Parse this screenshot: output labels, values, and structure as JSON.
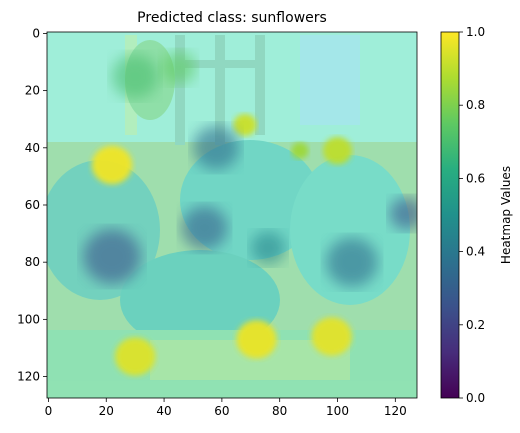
{
  "chart_data": {
    "type": "heatmap",
    "title": "Predicted class: sunflowers",
    "x_ticks": [
      0,
      20,
      40,
      60,
      80,
      100,
      120
    ],
    "y_ticks": [
      0,
      20,
      40,
      60,
      80,
      100,
      120
    ],
    "xlim": [
      -0.5,
      127.5
    ],
    "ylim": [
      127.5,
      -0.5
    ],
    "colorbar": {
      "label": "Heatmap Values",
      "range": [
        0.0,
        1.0
      ],
      "ticks": [
        "0.0",
        "0.2",
        "0.4",
        "0.6",
        "0.8",
        "1.0"
      ],
      "colormap": "viridis"
    },
    "overlay_blobs": [
      {
        "cx": 22,
        "cy": 46,
        "r": 7,
        "value": 0.98
      },
      {
        "cx": 68,
        "cy": 32,
        "r": 4,
        "value": 0.92
      },
      {
        "cx": 100,
        "cy": 41,
        "r": 5,
        "value": 0.9
      },
      {
        "cx": 87,
        "cy": 41,
        "r": 3,
        "value": 0.85
      },
      {
        "cx": 72,
        "cy": 107,
        "r": 7,
        "value": 0.97
      },
      {
        "cx": 98,
        "cy": 106,
        "r": 7,
        "value": 0.96
      },
      {
        "cx": 30,
        "cy": 113,
        "r": 7,
        "value": 0.95
      },
      {
        "cx": 22,
        "cy": 78,
        "r": 10,
        "value": 0.25
      },
      {
        "cx": 54,
        "cy": 68,
        "r": 8,
        "value": 0.3
      },
      {
        "cx": 58,
        "cy": 40,
        "r": 8,
        "value": 0.35
      },
      {
        "cx": 105,
        "cy": 80,
        "r": 9,
        "value": 0.35
      },
      {
        "cx": 124,
        "cy": 63,
        "r": 6,
        "value": 0.25
      },
      {
        "cx": 76,
        "cy": 75,
        "r": 6,
        "value": 0.45
      },
      {
        "cx": 30,
        "cy": 15,
        "r": 8,
        "value": 0.7
      },
      {
        "cx": 45,
        "cy": 12,
        "r": 6,
        "value": 0.75
      }
    ],
    "base_value": 0.72
  }
}
